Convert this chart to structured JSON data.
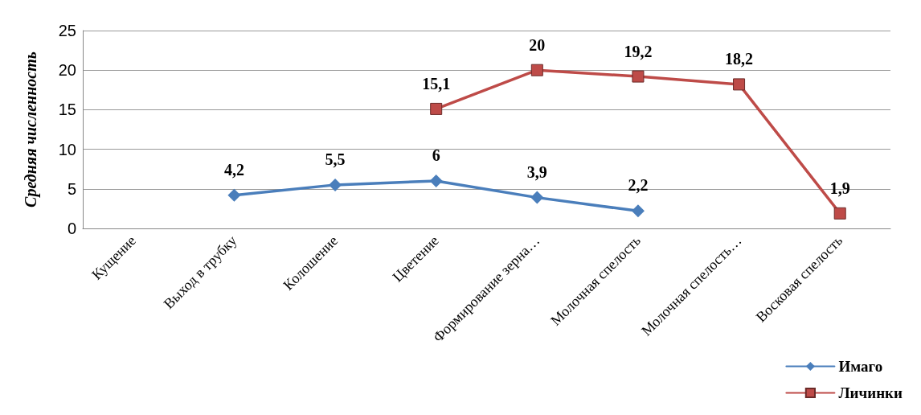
{
  "chart_data": {
    "type": "line",
    "ylabel": "Средняя численность",
    "categories": [
      "Кущение",
      "Выход в трубку",
      "Колошение",
      "Цветение",
      "Формирование зерна…",
      "Молочная спелость",
      "Молочная спелость…",
      "Восковая спелость"
    ],
    "series": [
      {
        "name": "Имаго",
        "color": "#4a7ebb",
        "marker": "diamond",
        "values": [
          null,
          4.2,
          5.5,
          6,
          3.9,
          2.2,
          null,
          null
        ],
        "value_labels": [
          null,
          "4,2",
          "5,5",
          "6",
          "3,9",
          "2,2",
          null,
          null
        ]
      },
      {
        "name": "Личинки",
        "color": "#be4b48",
        "marker": "square",
        "values": [
          null,
          null,
          null,
          15.1,
          20,
          19.2,
          18.2,
          1.9
        ],
        "value_labels": [
          null,
          null,
          null,
          "15,1",
          "20",
          "19,2",
          "18,2",
          "1,9"
        ]
      }
    ],
    "ylim": [
      0,
      25
    ],
    "yticks": [
      0,
      5,
      10,
      15,
      20,
      25
    ],
    "grid": "y",
    "legend": "bottom right"
  }
}
